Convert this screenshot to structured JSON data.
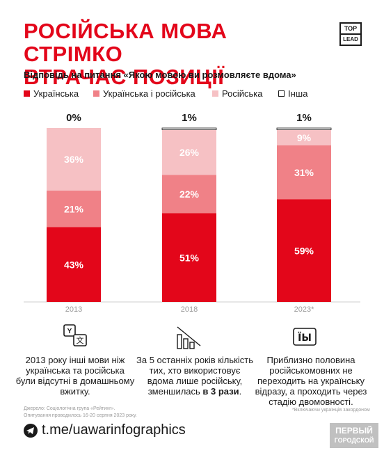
{
  "header": {
    "title_line1": "РОСІЙСЬКА МОВА СТРІМКО",
    "title_line2": "ВТРАЧАЄ ПОЗИЦІЇ",
    "brand_top": "TOP",
    "brand_bottom": "LEAD",
    "subtitle": "Відповідь на питання «Якою мовою ви розмовляєте вдома»"
  },
  "legend": [
    {
      "label": "Українська",
      "color": "#e3061a"
    },
    {
      "label": "Українська і російська",
      "color": "#f08187"
    },
    {
      "label": "Російська",
      "color": "#f6c1c4"
    },
    {
      "label": "Інша",
      "color": "#ffffff"
    }
  ],
  "chart_data": {
    "type": "bar",
    "stacked": true,
    "categories": [
      "2013",
      "2018",
      "2023*"
    ],
    "series": [
      {
        "name": "Українська",
        "color": "#e3061a",
        "values": [
          43,
          51,
          59
        ]
      },
      {
        "name": "Українська і російська",
        "color": "#f08187",
        "values": [
          21,
          22,
          31
        ]
      },
      {
        "name": "Російська",
        "color": "#f6c1c4",
        "values": [
          36,
          26,
          9
        ]
      },
      {
        "name": "Інша",
        "color": "#ffffff",
        "values": [
          0,
          1,
          1
        ]
      }
    ],
    "top_labels": [
      "0%",
      "1%",
      "1%"
    ],
    "ylim": [
      0,
      100
    ]
  },
  "info": {
    "col1": "2013 року інші мови ніж українська та російська були відсутні в домашньому вжитку.",
    "col2_part1": "За 5 останніх років кількість тих, хто використовує вдома лише російську, зменшилась ",
    "col2_bold": "в 3 рази",
    "col2_end": ".",
    "col3": "Приблизно половина російськомовних не переходить на українську відразу, а проходить через стадію двомовності."
  },
  "source_line1": "Джерело: Соціологічна група «Рейтинг».",
  "source_line2": "Опитування проводилось 16-20 серпня 2023 року.",
  "footnote": "*Включаючи українців закордоном",
  "footer_link": "t.me/uawarinfographics",
  "watermark_line1": "ПЕРВЫЙ",
  "watermark_line2": "ГОРОДСКОЙ"
}
